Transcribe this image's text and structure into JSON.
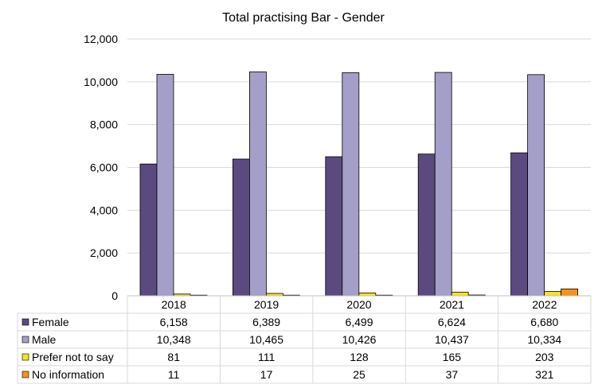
{
  "chart_data": {
    "type": "bar",
    "title": "Total practising Bar - Gender",
    "categories": [
      "2018",
      "2019",
      "2020",
      "2021",
      "2022"
    ],
    "ylim": [
      0,
      12000
    ],
    "yticks": [
      "0",
      "2,000",
      "4,000",
      "6,000",
      "8,000",
      "10,000",
      "12,000"
    ],
    "ytick_values": [
      0,
      2000,
      4000,
      6000,
      8000,
      10000,
      12000
    ],
    "grid": true,
    "legend": "data-table",
    "series": [
      {
        "name": "Female",
        "color": "#5b4a7f",
        "values": [
          6158,
          6389,
          6499,
          6624,
          6680
        ],
        "labels": [
          "6,158",
          "6,389",
          "6,499",
          "6,624",
          "6,680"
        ]
      },
      {
        "name": "Male",
        "color": "#a49fc8",
        "values": [
          10348,
          10465,
          10426,
          10437,
          10334
        ],
        "labels": [
          "10,348",
          "10,465",
          "10,426",
          "10,437",
          "10,334"
        ]
      },
      {
        "name": "Prefer not to say",
        "color": "#f5e31c",
        "values": [
          81,
          111,
          128,
          165,
          203
        ],
        "labels": [
          "81",
          "111",
          "128",
          "165",
          "203"
        ]
      },
      {
        "name": "No information",
        "color": "#f29418",
        "values": [
          11,
          17,
          25,
          37,
          321
        ],
        "labels": [
          "11",
          "17",
          "25",
          "37",
          "321"
        ]
      }
    ]
  }
}
